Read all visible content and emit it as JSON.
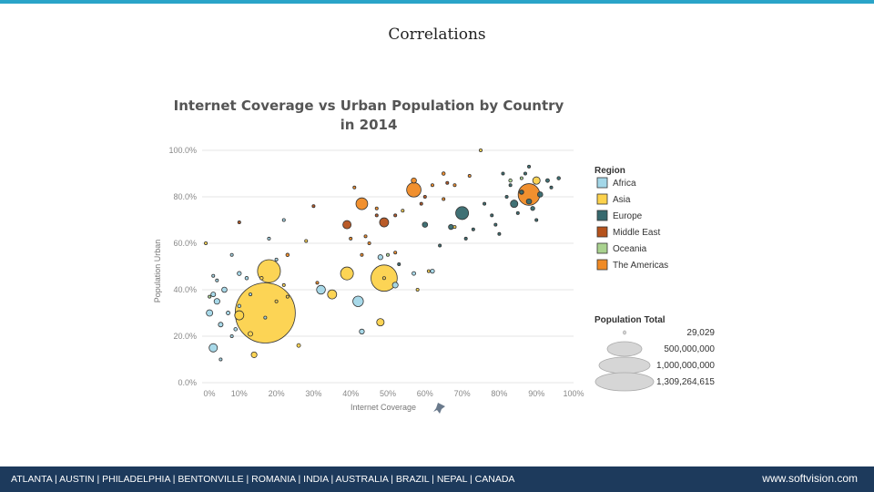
{
  "slide": {
    "title": "Correlations",
    "footer_cities": "ATLANTA | AUSTIN | PHILADELPHIA | BENTONVILLE | ROMANIA | INDIA | AUSTRALIA | BRAZIL | NEPAL | CANADA",
    "footer_url": "www.softvision.com"
  },
  "colors": {
    "Africa": "#a3d7e8",
    "Asia": "#fcd24c",
    "Europe": "#36696e",
    "Middle East": "#b5521c",
    "Oceania": "#a9d28f",
    "The Americas": "#f08a24",
    "accent_bar": "#2aa4c8",
    "footer_bg": "#1d3a5c"
  },
  "chart_data": {
    "type": "scatter",
    "title": "Internet Coverage vs Urban Population by Country in 2014",
    "title_lines": [
      "Internet Coverage vs Urban Population by Country",
      "in 2014"
    ],
    "xlabel": "Internet Coverage",
    "ylabel": "Population Urban",
    "xlim": [
      0,
      100
    ],
    "ylim": [
      0,
      100
    ],
    "x_ticks": [
      "0%",
      "10%",
      "20%",
      "30%",
      "40%",
      "50%",
      "60%",
      "70%",
      "80%",
      "90%",
      "100%"
    ],
    "y_ticks": [
      "0.0%",
      "20.0%",
      "40.0%",
      "60.0%",
      "80.0%",
      "100.0%"
    ],
    "color_legend": {
      "title": "Region",
      "items": [
        "Africa",
        "Asia",
        "Europe",
        "Middle East",
        "Oceania",
        "The Americas"
      ]
    },
    "size_legend": {
      "title": "Population Total",
      "items": [
        {
          "label": "29,029",
          "value": 29029
        },
        {
          "label": "500,000,000",
          "value": 500000000
        },
        {
          "label": "1,000,000,000",
          "value": 1000000000
        },
        {
          "label": "1,309,264,615",
          "value": 1309264615
        }
      ]
    },
    "series": [
      {
        "name": "Africa",
        "points": [
          [
            3,
            15,
            25000000
          ],
          [
            5,
            10,
            3000000
          ],
          [
            2,
            30,
            15000000
          ],
          [
            4,
            35,
            12000000
          ],
          [
            7,
            30,
            5000000
          ],
          [
            5,
            25,
            8000000
          ],
          [
            8,
            20,
            3000000
          ],
          [
            10,
            33,
            4000000
          ],
          [
            6,
            40,
            10000000
          ],
          [
            3,
            38,
            8000000
          ],
          [
            10,
            47,
            6000000
          ],
          [
            12,
            45,
            4000000
          ],
          [
            13,
            38,
            3000000
          ],
          [
            9,
            23,
            4000000
          ],
          [
            4,
            44,
            2000000
          ],
          [
            18,
            62,
            2000000
          ],
          [
            20,
            53,
            3000000
          ],
          [
            22,
            70,
            1500000
          ],
          [
            17,
            28,
            3000000
          ],
          [
            32,
            40,
            28000000
          ],
          [
            42,
            35,
            40000000
          ],
          [
            43,
            22,
            9000000
          ],
          [
            48,
            54,
            9000000
          ],
          [
            52,
            42,
            12000000
          ],
          [
            57,
            47,
            5000000
          ],
          [
            62,
            48,
            6000000
          ],
          [
            8,
            55,
            1000000
          ],
          [
            3,
            46,
            1000000
          ]
        ]
      },
      {
        "name": "Asia",
        "points": [
          [
            17,
            30,
            1309264615
          ],
          [
            49,
            45,
            1000000
          ],
          [
            49,
            45,
            250000000
          ],
          [
            18,
            48,
            190000000
          ],
          [
            39,
            47,
            60000000
          ],
          [
            35,
            38,
            30000000
          ],
          [
            48,
            26,
            20000000
          ],
          [
            10,
            29,
            30000000
          ],
          [
            13,
            21,
            8000000
          ],
          [
            14,
            12,
            12000000
          ],
          [
            16,
            45,
            4000000
          ],
          [
            26,
            16,
            5000000
          ],
          [
            1,
            60,
            1000000
          ],
          [
            28,
            61,
            1000000
          ],
          [
            90,
            87,
            20000000
          ],
          [
            86,
            82,
            7000000
          ],
          [
            75,
            100,
            1000000
          ],
          [
            20,
            35,
            3000000
          ],
          [
            58,
            40,
            2000000
          ],
          [
            22,
            42,
            2000000
          ],
          [
            68,
            67,
            2000000
          ],
          [
            61,
            48,
            1000000
          ],
          [
            54,
            74,
            1000000
          ],
          [
            23,
            37,
            2000000
          ]
        ]
      },
      {
        "name": "Europe",
        "points": [
          [
            70,
            73,
            60000000
          ],
          [
            60,
            68,
            10000000
          ],
          [
            67,
            67,
            9000000
          ],
          [
            71,
            62,
            3000000
          ],
          [
            84,
            77,
            20000000
          ],
          [
            88,
            78,
            10000000
          ],
          [
            86,
            82,
            5000000
          ],
          [
            91,
            81,
            10000000
          ],
          [
            94,
            84,
            3000000
          ],
          [
            93,
            87,
            5000000
          ],
          [
            96,
            88,
            4000000
          ],
          [
            89,
            75,
            6000000
          ],
          [
            90,
            70,
            3000000
          ],
          [
            85,
            73,
            2000000
          ],
          [
            82,
            80,
            2000000
          ],
          [
            64,
            59,
            3000000
          ],
          [
            53,
            51,
            3000000
          ],
          [
            73,
            66,
            1000000
          ],
          [
            76,
            77,
            1000000
          ],
          [
            79,
            68,
            1000000
          ],
          [
            80,
            64,
            1000000
          ],
          [
            81,
            90,
            1000000
          ],
          [
            87,
            90,
            1000000
          ],
          [
            83,
            85,
            2000000
          ],
          [
            78,
            72,
            1000000
          ],
          [
            88,
            93,
            1000000
          ]
        ]
      },
      {
        "name": "Middle East",
        "points": [
          [
            39,
            68,
            25000000
          ],
          [
            49,
            69,
            30000000
          ],
          [
            60,
            80,
            2000000
          ],
          [
            66,
            86,
            1000000
          ],
          [
            10,
            69,
            3000000
          ],
          [
            30,
            76,
            1000000
          ],
          [
            47,
            72,
            2000000
          ],
          [
            52,
            72,
            1000000
          ],
          [
            59,
            77,
            2000000
          ]
        ]
      },
      {
        "name": "Oceania",
        "points": [
          [
            83,
            87,
            4000000
          ],
          [
            86,
            88,
            2000000
          ],
          [
            50,
            55,
            1000000
          ],
          [
            2,
            37,
            1000000
          ]
        ]
      },
      {
        "name": "The Americas",
        "points": [
          [
            57,
            83,
            75000000
          ],
          [
            88,
            81,
            170000000
          ],
          [
            43,
            77,
            50000000
          ],
          [
            57,
            87,
            10000000
          ],
          [
            65,
            90,
            4000000
          ],
          [
            47,
            75,
            2000000
          ],
          [
            52,
            56,
            2000000
          ],
          [
            45,
            60,
            1000000
          ],
          [
            40,
            62,
            1000000
          ],
          [
            43,
            55,
            1000000
          ],
          [
            44,
            63,
            1000000
          ],
          [
            41,
            84,
            1000000
          ],
          [
            62,
            85,
            1000000
          ],
          [
            65,
            79,
            1000000
          ],
          [
            68,
            85,
            2000000
          ],
          [
            72,
            89,
            1000000
          ],
          [
            23,
            55,
            4000000
          ],
          [
            31,
            43,
            2000000
          ]
        ]
      }
    ]
  }
}
